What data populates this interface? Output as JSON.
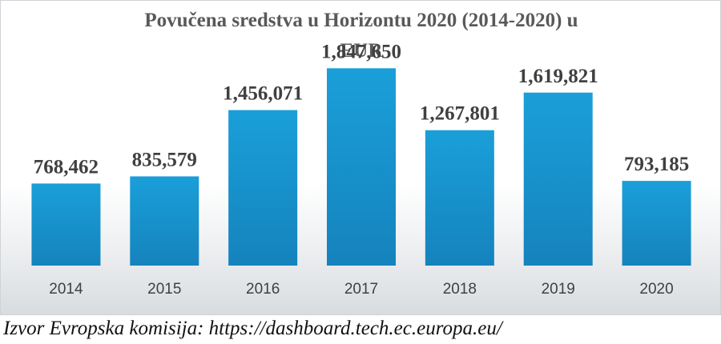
{
  "chart_data": {
    "type": "bar",
    "title_lines": [
      "Povučena sredstva u Horizontu 2020 (2014-2020) u",
      "EUR"
    ],
    "categories": [
      "2014",
      "2015",
      "2016",
      "2017",
      "2018",
      "2019",
      "2020"
    ],
    "values": [
      768462,
      835579,
      1456071,
      1847650,
      1267801,
      1619821,
      793185
    ],
    "value_labels": [
      "768,462",
      "835,579",
      "1,456,071",
      "1,847,650",
      "1,267,801",
      "1,619,821",
      "793,185"
    ],
    "xlabel": "",
    "ylabel": "",
    "ylim": [
      0,
      2000000
    ],
    "grid": false,
    "legend": "none",
    "bar_color_top": "#1a9fd9",
    "bar_color_bottom": "#1583bd"
  },
  "source": "Izvor Evropska komisija: https://dashboard.tech.ec.europa.eu/"
}
